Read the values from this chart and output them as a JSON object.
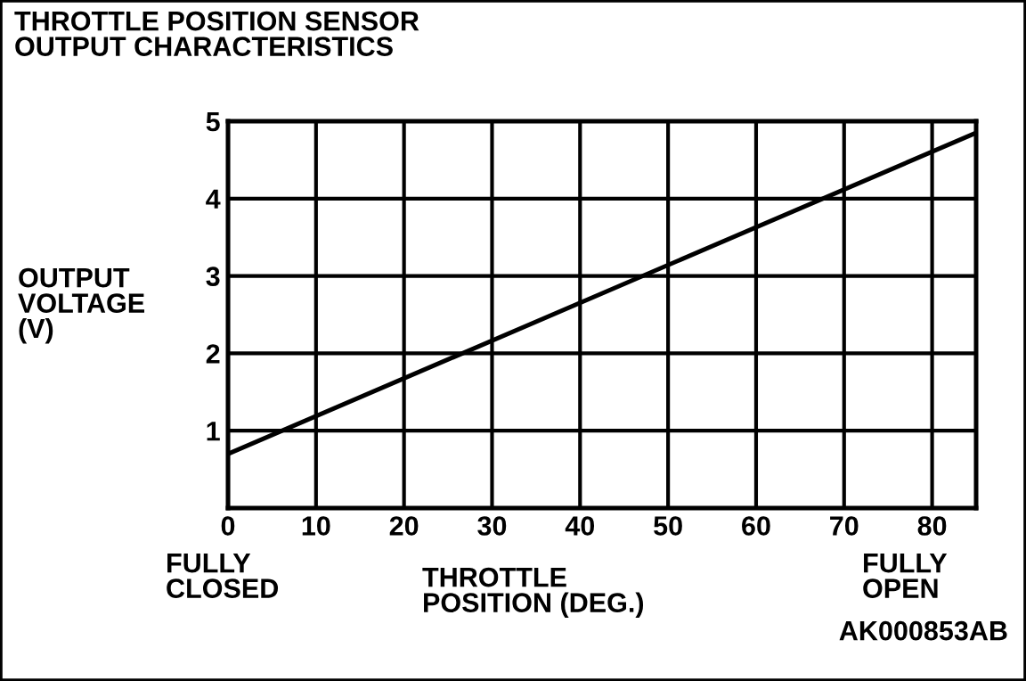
{
  "chart_data": {
    "type": "line",
    "title": "THROTTLE POSITION SENSOR\nOUTPUT CHARACTERISTICS",
    "xlabel": "THROTTLE\nPOSITION (DEG.)",
    "ylabel": "OUTPUT\nVOLTAGE\n(V)",
    "x": [
      0,
      85
    ],
    "series": [
      {
        "color": "#000000",
        "values": [
          0.7,
          4.85
        ]
      }
    ],
    "xlim": [
      0,
      85
    ],
    "ylim": [
      0,
      5
    ],
    "xticks": [
      0,
      10,
      20,
      30,
      40,
      50,
      60,
      70,
      80
    ],
    "yticks": [
      1,
      2,
      3,
      4,
      5
    ],
    "grid": true,
    "line_style": "solid",
    "annotations": [
      "FULLY\nCLOSED",
      "FULLY\nOPEN",
      "AK000853AB"
    ]
  }
}
